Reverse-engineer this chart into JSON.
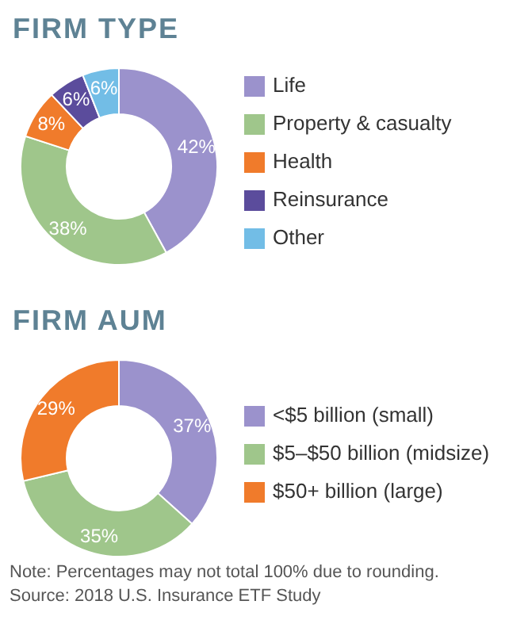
{
  "chart_data": [
    {
      "type": "donut",
      "title": "FIRM TYPE",
      "categories": [
        "Life",
        "Property & casualty",
        "Health",
        "Reinsurance",
        "Other"
      ],
      "values": [
        42,
        38,
        8,
        6,
        6
      ],
      "value_labels": [
        "42%",
        "38%",
        "8%",
        "6%",
        "6%"
      ],
      "colors": [
        "#9b92cc",
        "#9fc68b",
        "#f07b2b",
        "#5b4c9c",
        "#72bde6"
      ],
      "legend": "right"
    },
    {
      "type": "donut",
      "title": "FIRM AUM",
      "categories": [
        "<$5 billion (small)",
        "$5–$50 billion (midsize)",
        "$50+ billion (large)"
      ],
      "values": [
        37,
        35,
        29
      ],
      "value_labels": [
        "37%",
        "35%",
        "29%"
      ],
      "colors": [
        "#9b92cc",
        "#9fc68b",
        "#f07b2b"
      ],
      "legend": "right",
      "annotations": [
        "Note: Percentages may not total 100% due to rounding.",
        "Source: 2018 U.S. Insurance ETF Study"
      ]
    }
  ]
}
